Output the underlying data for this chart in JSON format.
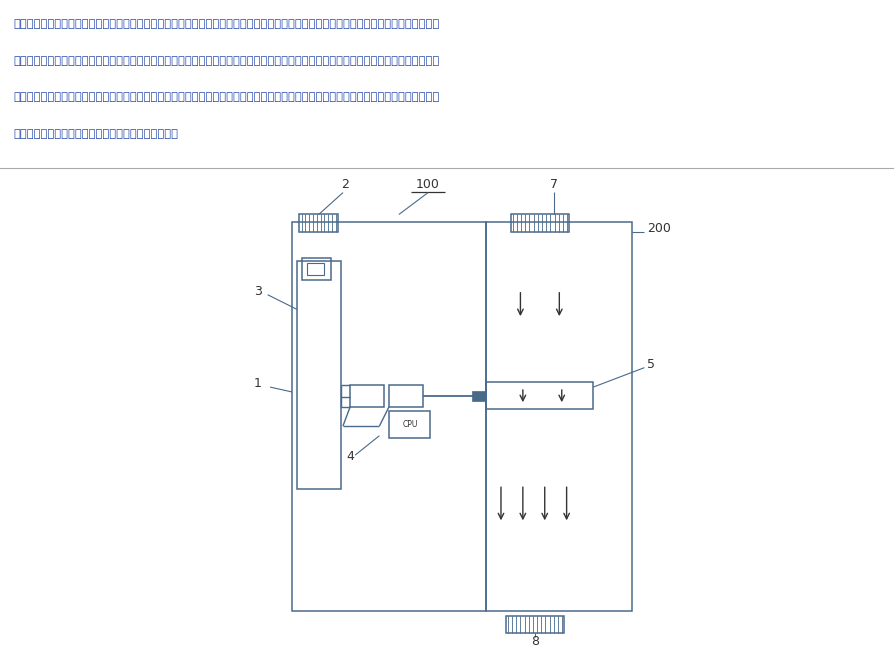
{
  "text_paragraph": "本申请提出一种用于卷轴屏的散热结构及电子设备，所述卷轴屏包括本体和活动设置于所述本体内的分体，包括设置于所述本体内的腔体和设置于所述本体上的进气孔，所述进气孔和所述腔体连通，所述腔体内设置有进风组件，所述腔体连通有导气通道，所述导气通道用于经过所述本体内的发热部件且延伸至所述分体内，利用卷轴屏展开后的腔体，通过在腔体内设置进风组件，主动对卷轴屏的本体和分体进行散热，更好地带走手机发出的热量，增加了手机自身的散热能力。",
  "bg_color": "#ffffff",
  "line_color": "#4a6a8a",
  "text_color": "#2244aa",
  "label_color": "#333333",
  "divider_color": "#aaaaaa"
}
